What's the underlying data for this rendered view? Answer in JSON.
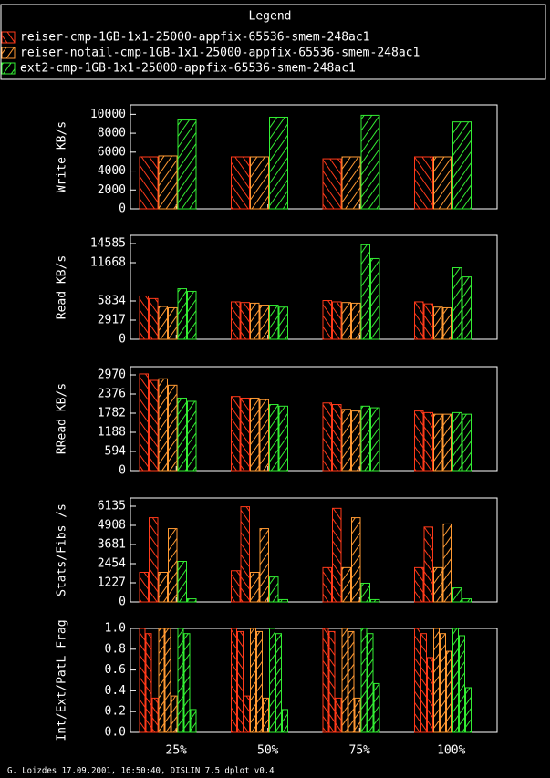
{
  "legend": {
    "title": "Legend",
    "series": [
      {
        "name": "reiser-cmp-1GB-1x1-25000-appfix-65536-smem-248ac1",
        "color": "#ff3a1a"
      },
      {
        "name": "reiser-notail-cmp-1GB-1x1-25000-appfix-65536-smem-248ac1",
        "color": "#ff9a33"
      },
      {
        "name": "ext2-cmp-1GB-1x1-25000-appfix-65536-smem-248ac1",
        "color": "#33ee33"
      }
    ]
  },
  "categories": [
    "25%",
    "50%",
    "75%",
    "100%"
  ],
  "chart_data": [
    {
      "type": "bar",
      "ylabel": "Write KB/s",
      "ylim": [
        0,
        11000
      ],
      "yticks": [
        0,
        2000,
        4000,
        6000,
        8000,
        10000
      ],
      "series": [
        {
          "values": [
            5500,
            5500,
            5300,
            5500
          ]
        },
        {
          "values": [
            5600,
            5500,
            5500,
            5500
          ]
        },
        {
          "values": [
            9400,
            9700,
            9900,
            9200
          ]
        }
      ]
    },
    {
      "type": "bar",
      "ylabel": "Read KB/s",
      "ylim": [
        0,
        15835
      ],
      "yticks": [
        0,
        2917,
        5834,
        11668,
        14585
      ],
      "series": [
        {
          "values": [
            [
              6600,
              6200
            ],
            [
              5700,
              5600
            ],
            [
              5900,
              5700
            ],
            [
              5700,
              5400
            ]
          ]
        },
        {
          "values": [
            [
              5000,
              4800
            ],
            [
              5500,
              5200
            ],
            [
              5600,
              5500
            ],
            [
              4900,
              4800
            ]
          ]
        },
        {
          "values": [
            [
              7700,
              7300
            ],
            [
              5200,
              4900
            ],
            [
              14400,
              12300
            ],
            [
              10900,
              9500
            ]
          ]
        }
      ]
    },
    {
      "type": "bar",
      "ylabel": "RRead KB/s",
      "ylim": [
        0,
        3225
      ],
      "yticks": [
        0,
        594,
        1188,
        1782,
        2376,
        2970
      ],
      "series": [
        {
          "values": [
            [
              3000,
              2800
            ],
            [
              2300,
              2250
            ],
            [
              2100,
              2050
            ],
            [
              1850,
              1800
            ]
          ]
        },
        {
          "values": [
            [
              2850,
              2650
            ],
            [
              2250,
              2200
            ],
            [
              1900,
              1850
            ],
            [
              1750,
              1750
            ]
          ]
        },
        {
          "values": [
            [
              2250,
              2150
            ],
            [
              2050,
              2000
            ],
            [
              2000,
              1950
            ],
            [
              1800,
              1750
            ]
          ]
        }
      ]
    },
    {
      "type": "bar",
      "ylabel": "Stats/Fibs /s",
      "ylim": [
        0,
        6661
      ],
      "yticks": [
        0,
        1227,
        2454,
        3681,
        4908,
        6135
      ],
      "series": [
        {
          "values": [
            [
              1900,
              5400
            ],
            [
              2000,
              6100
            ],
            [
              2200,
              6000
            ],
            [
              2200,
              4800
            ]
          ]
        },
        {
          "values": [
            [
              1900,
              4700
            ],
            [
              1900,
              4700
            ],
            [
              2200,
              5400
            ],
            [
              2200,
              5000
            ]
          ]
        },
        {
          "values": [
            [
              2600,
              200
            ],
            [
              1600,
              150
            ],
            [
              1200,
              150
            ],
            [
              900,
              200
            ]
          ]
        }
      ]
    },
    {
      "type": "bar",
      "ylabel": "Int/Ext/PatL Frag",
      "ylim": [
        0,
        1
      ],
      "yticks": [
        {
          "value": 0,
          "label": "0.0"
        },
        0.2,
        0.4,
        0.6,
        0.8,
        {
          "value": 1,
          "label": "1.0"
        }
      ],
      "series": [
        {
          "values": [
            [
              1.0,
              0.95,
              0.33
            ],
            [
              1.0,
              0.97,
              0.35
            ],
            [
              1.0,
              0.97,
              0.33
            ],
            [
              1.0,
              0.95,
              0.72
            ]
          ]
        },
        {
          "values": [
            [
              1.0,
              1.0,
              0.35
            ],
            [
              1.0,
              0.97,
              0.33
            ],
            [
              1.0,
              0.97,
              0.33
            ],
            [
              1.0,
              0.95,
              0.78
            ]
          ]
        },
        {
          "values": [
            [
              1.0,
              0.95,
              0.22
            ],
            [
              1.0,
              0.95,
              0.22
            ],
            [
              1.0,
              0.95,
              0.47
            ],
            [
              1.0,
              0.93,
              0.43
            ]
          ]
        }
      ]
    }
  ],
  "footer": "G. Loizdes 17.09.2001, 16:50:40, DISLIN 7.5 dplot v0.4"
}
